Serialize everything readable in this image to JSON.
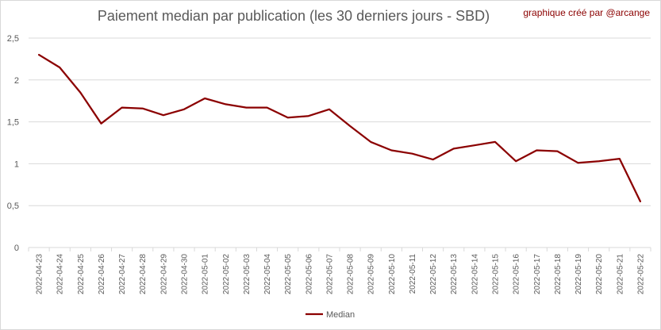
{
  "chart_data": {
    "type": "line",
    "title": "Paiement median par publication (les 30 derniers jours - SBD)",
    "credit": "graphique créé par @arcange",
    "xlabel": "",
    "ylabel": "",
    "ylim": [
      0,
      2.5
    ],
    "yticks": [
      "0",
      "0,5",
      "1",
      "1,5",
      "2",
      "2,5"
    ],
    "grid": true,
    "legend_position": "bottom",
    "categories": [
      "2022-04-23",
      "2022-04-24",
      "2022-04-25",
      "2022-04-26",
      "2022-04-27",
      "2022-04-28",
      "2022-04-29",
      "2022-04-30",
      "2022-05-01",
      "2022-05-02",
      "2022-05-03",
      "2022-05-04",
      "2022-05-05",
      "2022-05-06",
      "2022-05-07",
      "2022-05-08",
      "2022-05-09",
      "2022-05-10",
      "2022-05-11",
      "2022-05-12",
      "2022-05-13",
      "2022-05-14",
      "2022-05-15",
      "2022-05-16",
      "2022-05-17",
      "2022-05-18",
      "2022-05-19",
      "2022-05-20",
      "2022-05-21",
      "2022-05-22"
    ],
    "series": [
      {
        "name": "Median",
        "color": "#8b0000",
        "values": [
          2.3,
          2.15,
          1.85,
          1.48,
          1.67,
          1.66,
          1.58,
          1.65,
          1.78,
          1.71,
          1.67,
          1.67,
          1.55,
          1.57,
          1.65,
          1.45,
          1.26,
          1.16,
          1.12,
          1.05,
          1.18,
          1.22,
          1.26,
          1.03,
          1.16,
          1.15,
          1.01,
          1.03,
          1.06,
          0.55
        ]
      }
    ]
  }
}
